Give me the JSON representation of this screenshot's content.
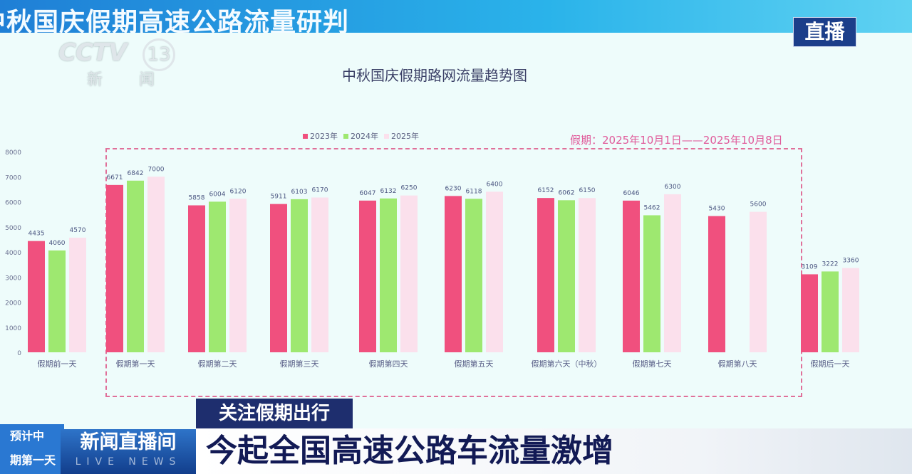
{
  "banner": {
    "title": "中秋国庆假期高速公路流量研判"
  },
  "logo": {
    "brand": "CCTV",
    "channel": "13",
    "name": "新 闻"
  },
  "live_badge": "直播",
  "note": "假期：2025年10月1日——2025年10月8日",
  "chart_data": {
    "type": "bar",
    "title": "中秋国庆假期路网流量趋势图",
    "categories": [
      "假期前一天",
      "假期第一天",
      "假期第二天",
      "假期第三天",
      "假期第四天",
      "假期第五天",
      "假期第六天（中秋）",
      "假期第七天",
      "假期第八天",
      "假期后一天"
    ],
    "series": [
      {
        "name": "2023年",
        "color": "#f0507e",
        "values": [
          4435,
          6671,
          5858,
          5911,
          6047,
          6230,
          6152,
          6046,
          5430,
          3109
        ]
      },
      {
        "name": "2024年",
        "color": "#9ee870",
        "values": [
          4060,
          6842,
          6004,
          6103,
          6132,
          6118,
          6062,
          5462,
          null,
          3222
        ]
      },
      {
        "name": "2025年",
        "color": "#fbe0ec",
        "values": [
          4570,
          7000,
          6120,
          6170,
          6250,
          6400,
          6150,
          6300,
          5600,
          3360
        ]
      }
    ],
    "ylim": [
      0,
      8000
    ],
    "yticks": [
      0,
      1000,
      2000,
      3000,
      4000,
      5000,
      6000,
      7000,
      8000
    ],
    "legend": "top",
    "grid": false,
    "highlight": "dashed box around holiday days 1-8"
  },
  "ticker": {
    "tag": "关注假期出行",
    "headline": "今起全国高速公路车流量激增",
    "program": "新闻直播间",
    "program_en": "LIVE NEWS",
    "bg_lines": [
      "预计中",
      "期第一天"
    ]
  }
}
